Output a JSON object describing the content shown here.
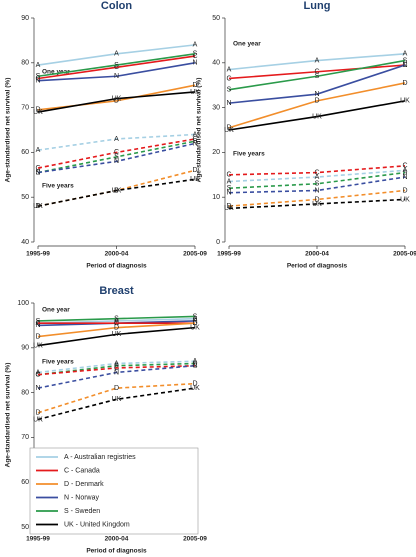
{
  "chart_data": [
    {
      "type": "line",
      "title": "Colon",
      "ylabel": "Age-standardised net survival (%)",
      "xlabel": "Period of diagnosis",
      "categories": [
        "1995-99",
        "2000-04",
        "2005-09"
      ],
      "ylim": [
        40,
        90
      ],
      "yticks": [
        40,
        50,
        60,
        70,
        80,
        90
      ],
      "annotations": [
        "One year",
        "Five years"
      ],
      "series": [
        {
          "name": "A",
          "color": "#a6d0e4",
          "dashed": false,
          "values": [
            79.5,
            82,
            84
          ]
        },
        {
          "name": "C",
          "color": "#e41a1c",
          "dashed": false,
          "values": [
            76.5,
            79,
            81.5
          ]
        },
        {
          "name": "S",
          "color": "#2a9a4a",
          "dashed": false,
          "values": [
            77,
            79.5,
            82
          ]
        },
        {
          "name": "N",
          "color": "#3a4ea0",
          "dashed": false,
          "values": [
            76,
            77,
            80
          ]
        },
        {
          "name": "D",
          "color": "#f28e2b",
          "dashed": false,
          "values": [
            69.5,
            71.5,
            75
          ]
        },
        {
          "name": "UK",
          "color": "#000000",
          "dashed": false,
          "values": [
            69,
            72,
            73.5
          ]
        },
        {
          "name": "A",
          "color": "#a6d0e4",
          "dashed": true,
          "values": [
            60.5,
            63,
            64
          ]
        },
        {
          "name": "C",
          "color": "#e41a1c",
          "dashed": true,
          "values": [
            56.5,
            60,
            63
          ]
        },
        {
          "name": "S",
          "color": "#2a9a4a",
          "dashed": true,
          "values": [
            55.5,
            59,
            62.5
          ]
        },
        {
          "name": "N",
          "color": "#3a4ea0",
          "dashed": true,
          "values": [
            55.5,
            58,
            62
          ]
        },
        {
          "name": "D",
          "color": "#f28e2b",
          "dashed": true,
          "values": [
            48,
            51.5,
            56
          ]
        },
        {
          "name": "UK",
          "color": "#000000",
          "dashed": true,
          "values": [
            48,
            51.5,
            54
          ]
        }
      ]
    },
    {
      "type": "line",
      "title": "Lung",
      "ylabel": "Age-standardised net survival (%)",
      "xlabel": "Period of diagnosis",
      "categories": [
        "1995-99",
        "2000-04",
        "2005-09"
      ],
      "ylim": [
        0,
        50
      ],
      "yticks": [
        0,
        10,
        20,
        30,
        40,
        50
      ],
      "annotations": [
        "One year",
        "Five years"
      ],
      "series": [
        {
          "name": "A",
          "color": "#a6d0e4",
          "dashed": false,
          "values": [
            38.5,
            40.5,
            42
          ]
        },
        {
          "name": "C",
          "color": "#e41a1c",
          "dashed": false,
          "values": [
            36.5,
            38,
            39.5
          ]
        },
        {
          "name": "N",
          "color": "#3a4ea0",
          "dashed": false,
          "values": [
            31,
            33,
            39.5
          ]
        },
        {
          "name": "S",
          "color": "#2a9a4a",
          "dashed": false,
          "values": [
            34,
            37,
            40.5
          ]
        },
        {
          "name": "D",
          "color": "#f28e2b",
          "dashed": false,
          "values": [
            25.5,
            31.5,
            35.5
          ]
        },
        {
          "name": "UK",
          "color": "#000000",
          "dashed": false,
          "values": [
            25,
            28,
            31.5
          ]
        },
        {
          "name": "C",
          "color": "#e41a1c",
          "dashed": true,
          "values": [
            15,
            15.5,
            17
          ]
        },
        {
          "name": "A",
          "color": "#a6d0e4",
          "dashed": true,
          "values": [
            13.5,
            14.5,
            16
          ]
        },
        {
          "name": "S",
          "color": "#2a9a4a",
          "dashed": true,
          "values": [
            12,
            13,
            15.5
          ]
        },
        {
          "name": "N",
          "color": "#3a4ea0",
          "dashed": true,
          "values": [
            11,
            11.5,
            14.5
          ]
        },
        {
          "name": "D",
          "color": "#f28e2b",
          "dashed": true,
          "values": [
            8,
            9.5,
            11.5
          ]
        },
        {
          "name": "UK",
          "color": "#000000",
          "dashed": true,
          "values": [
            7.5,
            8.5,
            9.5
          ]
        }
      ]
    },
    {
      "type": "line",
      "title": "Breast",
      "ylabel": "Age-standardised net survival (%)",
      "xlabel": "Period of diagnosis",
      "categories": [
        "1995-99",
        "2000-04",
        "2005-09"
      ],
      "ylim": [
        50,
        100
      ],
      "yticks": [
        50,
        60,
        70,
        80,
        90,
        100
      ],
      "annotations": [
        "One year",
        "Five years"
      ],
      "series": [
        {
          "name": "S",
          "color": "#2a9a4a",
          "dashed": false,
          "values": [
            96,
            96.5,
            97
          ]
        },
        {
          "name": "A",
          "color": "#a6d0e4",
          "dashed": false,
          "values": [
            95.5,
            96,
            96.5
          ]
        },
        {
          "name": "N",
          "color": "#3a4ea0",
          "dashed": false,
          "values": [
            95,
            95.5,
            96
          ]
        },
        {
          "name": "C",
          "color": "#e41a1c",
          "dashed": false,
          "values": [
            95.5,
            95.5,
            95.5
          ]
        },
        {
          "name": "D",
          "color": "#f28e2b",
          "dashed": false,
          "values": [
            92.5,
            94.5,
            95.5
          ]
        },
        {
          "name": "UK",
          "color": "#000000",
          "dashed": false,
          "values": [
            90.5,
            93,
            94.5
          ]
        },
        {
          "name": "A",
          "color": "#a6d0e4",
          "dashed": true,
          "values": [
            84.5,
            86.5,
            87
          ]
        },
        {
          "name": "S",
          "color": "#2a9a4a",
          "dashed": true,
          "values": [
            84,
            86,
            86.5
          ]
        },
        {
          "name": "C",
          "color": "#e41a1c",
          "dashed": true,
          "values": [
            84,
            85.5,
            86
          ]
        },
        {
          "name": "N",
          "color": "#3a4ea0",
          "dashed": true,
          "values": [
            81,
            84.5,
            86
          ]
        },
        {
          "name": "D",
          "color": "#f28e2b",
          "dashed": true,
          "values": [
            75.5,
            81,
            82
          ]
        },
        {
          "name": "UK",
          "color": "#000000",
          "dashed": true,
          "values": [
            74,
            78.5,
            81
          ]
        }
      ],
      "legend": [
        {
          "label": "A - Australian registries",
          "color": "#a6d0e4"
        },
        {
          "label": "C - Canada",
          "color": "#e41a1c"
        },
        {
          "label": "D - Denmark",
          "color": "#f28e2b"
        },
        {
          "label": "N - Norway",
          "color": "#3a4ea0"
        },
        {
          "label": "S - Sweden",
          "color": "#2a9a4a"
        },
        {
          "label": "UK - United Kingdom",
          "color": "#000000"
        }
      ]
    }
  ]
}
